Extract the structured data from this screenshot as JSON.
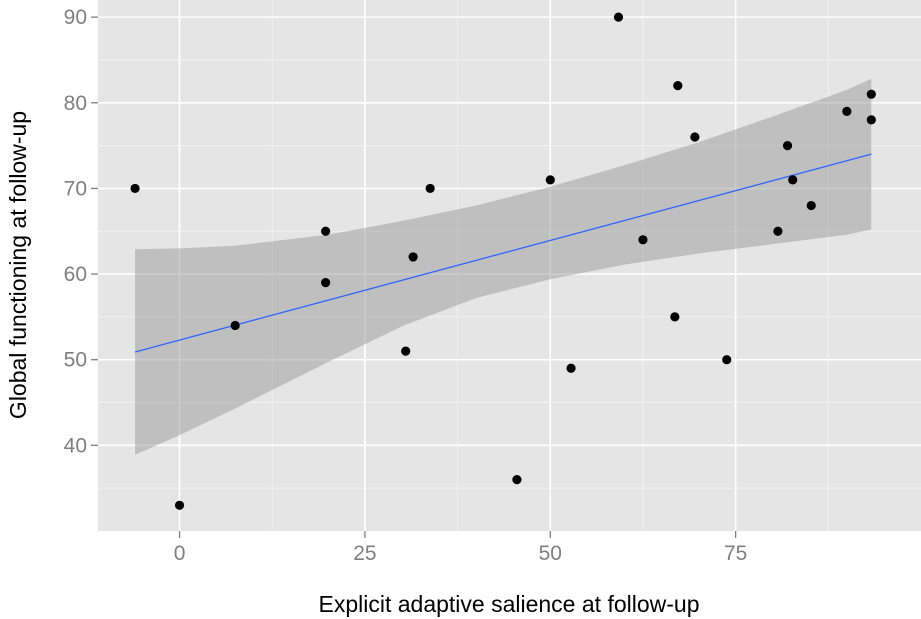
{
  "chart_data": {
    "type": "scatter",
    "xlabel": "Explicit adaptive salience at follow-up",
    "ylabel": "Global functioning at follow-up",
    "xlim": [
      -11,
      100
    ],
    "ylim": [
      30,
      92
    ],
    "x_ticks": [
      0,
      25,
      50,
      75
    ],
    "y_ticks": [
      40,
      50,
      60,
      70,
      80,
      90
    ],
    "grid": true,
    "points": [
      {
        "x": -6,
        "y": 70
      },
      {
        "x": 0,
        "y": 33
      },
      {
        "x": 7.5,
        "y": 54
      },
      {
        "x": 19.7,
        "y": 65
      },
      {
        "x": 19.7,
        "y": 59
      },
      {
        "x": 30.5,
        "y": 51
      },
      {
        "x": 31.5,
        "y": 62
      },
      {
        "x": 33.8,
        "y": 70
      },
      {
        "x": 45.5,
        "y": 36
      },
      {
        "x": 50,
        "y": 71
      },
      {
        "x": 52.8,
        "y": 49
      },
      {
        "x": 59.2,
        "y": 90
      },
      {
        "x": 62.5,
        "y": 64
      },
      {
        "x": 66.8,
        "y": 55
      },
      {
        "x": 67.2,
        "y": 82
      },
      {
        "x": 69.5,
        "y": 76
      },
      {
        "x": 73.8,
        "y": 50
      },
      {
        "x": 80.7,
        "y": 65
      },
      {
        "x": 82,
        "y": 75
      },
      {
        "x": 82.7,
        "y": 71
      },
      {
        "x": 85.2,
        "y": 68
      },
      {
        "x": 90,
        "y": 79
      },
      {
        "x": 93.3,
        "y": 81
      },
      {
        "x": 93.3,
        "y": 78
      }
    ],
    "fit_line": {
      "color": "#3366ff",
      "x": [
        -6,
        93.3
      ],
      "y": [
        50.9,
        74.0
      ]
    },
    "confidence_band": {
      "color": "#999999",
      "opacity": 0.5,
      "x": [
        -6,
        0,
        7.5,
        20,
        30,
        40,
        50,
        60,
        70,
        80,
        90,
        93.3
      ],
      "lower": [
        38.9,
        41.2,
        44.3,
        49.7,
        53.9,
        57.2,
        59.4,
        61.1,
        62.4,
        63.5,
        64.6,
        65.2
      ],
      "upper": [
        62.9,
        63.0,
        63.3,
        64.6,
        66.2,
        68.0,
        70.2,
        72.7,
        75.4,
        78.4,
        81.5,
        82.8
      ]
    },
    "colors": {
      "panel_background": "#e5e5e5",
      "grid_major": "#ffffff",
      "grid_minor": "#f2f2f2",
      "point": "#000000"
    }
  }
}
